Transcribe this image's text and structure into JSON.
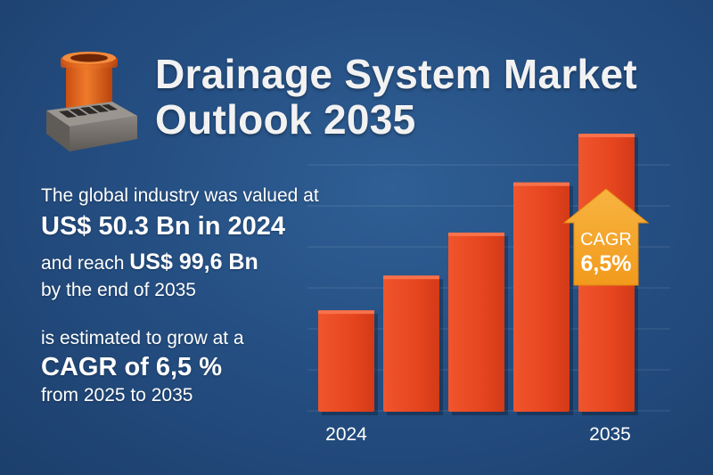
{
  "header": {
    "title_line1": "Drainage System Market",
    "title_line2": "Outlook 2035",
    "icon": "drain-pipe-grate-icon"
  },
  "body_text": {
    "line1": "The global industry was valued at",
    "line2": "US$ 50.3 Bn in 2024",
    "line3_prefix": "and reach ",
    "line3_value": "US$ 99,6 Bn",
    "line4": "by the end of 2035",
    "line5": "is estimated to grow at a",
    "line6": "CAGR of 6,5 %",
    "line7": "from 2025 to 2035"
  },
  "badge": {
    "label": "CAGR",
    "value": "6,5%",
    "color": "#f5a623"
  },
  "colors": {
    "background": "#254f83",
    "bar": "#ea4a26",
    "text": "#ffffff"
  },
  "chart_data": {
    "type": "bar",
    "title": "Drainage System Market Outlook 2035",
    "categories": [
      "2024",
      "",
      "",
      "",
      "2035"
    ],
    "tick_labels": [
      "2024",
      "2035"
    ],
    "values": [
      50.3,
      60,
      72,
      86,
      99.6
    ],
    "unit": "US$ Bn",
    "xlabel": "",
    "ylabel": "",
    "ylim": [
      22,
      110
    ],
    "grid": true,
    "legend": "none",
    "annotations": [
      {
        "text": "CAGR 6,5%",
        "near": "last-bar",
        "shape": "up-arrow"
      }
    ]
  }
}
